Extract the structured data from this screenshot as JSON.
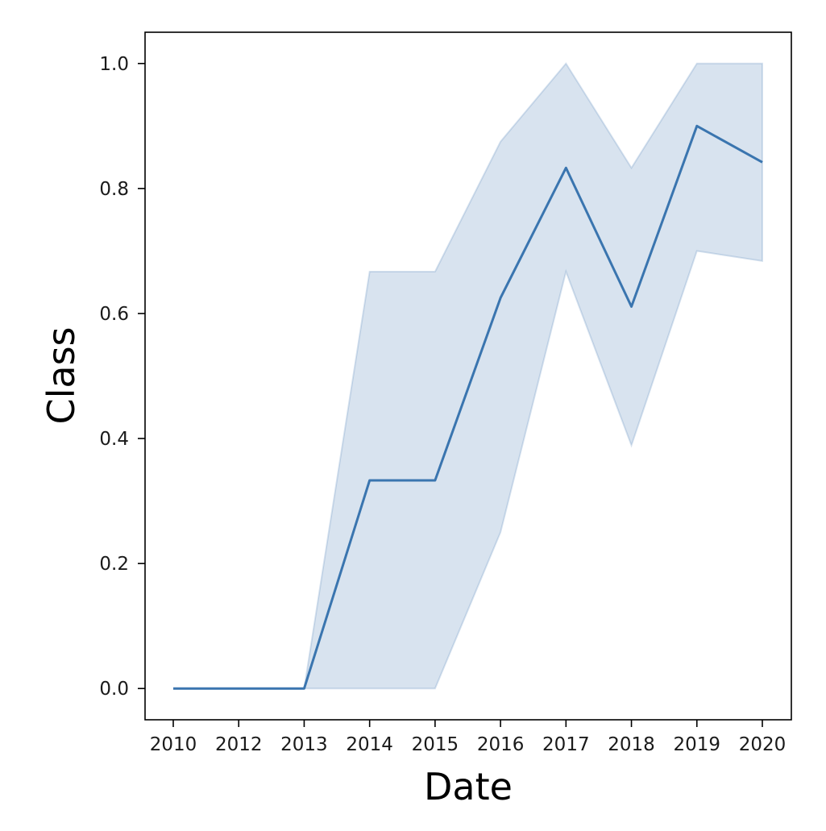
{
  "chart_data": {
    "type": "line",
    "title": "",
    "xlabel": "Date",
    "ylabel": "Class",
    "x_tick_labels": [
      "2010",
      "2012",
      "2013",
      "2014",
      "2015",
      "2016",
      "2017",
      "2018",
      "2019",
      "2020"
    ],
    "y_tick_labels": [
      "0.0",
      "0.2",
      "0.4",
      "0.6",
      "0.8",
      "1.0"
    ],
    "y_ticks": [
      0.0,
      0.2,
      0.4,
      0.6,
      0.8,
      1.0
    ],
    "ylim": [
      -0.05,
      1.05
    ],
    "grid": false,
    "legend": "none",
    "series": [
      {
        "x": [
          "2010",
          "2012",
          "2013",
          "2014",
          "2015",
          "2016",
          "2017",
          "2018",
          "2019",
          "2020"
        ],
        "values": [
          0.0,
          0.0,
          0.0,
          0.333,
          0.333,
          0.625,
          0.833,
          0.611,
          0.9,
          0.842
        ],
        "ci_lower": [
          0.0,
          0.0,
          0.0,
          0.0,
          0.0,
          0.25,
          0.667,
          0.389,
          0.7,
          0.684
        ],
        "ci_upper": [
          0.0,
          0.0,
          0.0,
          0.667,
          0.667,
          0.875,
          1.0,
          0.833,
          1.0,
          1.0
        ],
        "color": "#3a75af",
        "band_color": "#3a75af"
      }
    ]
  }
}
